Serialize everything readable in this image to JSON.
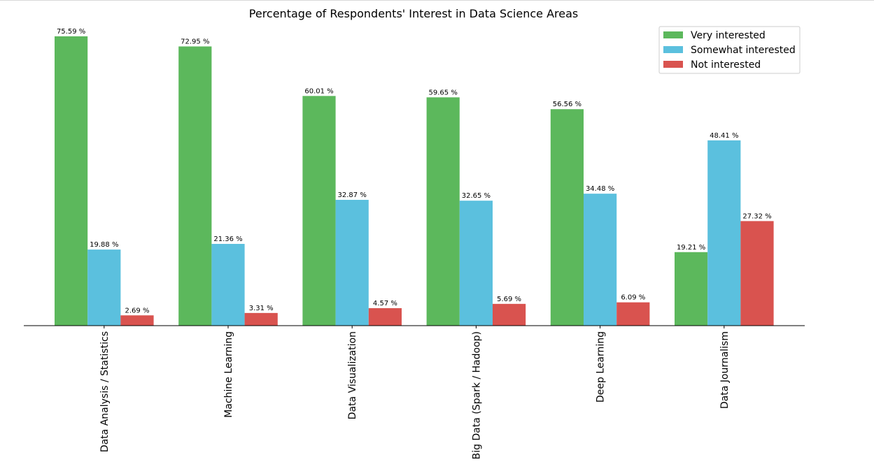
{
  "chart_data": {
    "type": "bar",
    "title": "Percentage of Respondents' Interest in Data Science Areas",
    "xlabel": "",
    "ylabel": "",
    "ylim": [
      0,
      77
    ],
    "grid": false,
    "legend_position": "top-right",
    "value_suffix": " %",
    "categories": [
      "Data Analysis / Statistics",
      "Machine Learning",
      "Data Visualization",
      "Big Data (Spark / Hadoop)",
      "Deep Learning",
      "Data Journalism"
    ],
    "series": [
      {
        "name": "Very interested",
        "color": "#5cb85c",
        "values": [
          75.59,
          72.95,
          60.01,
          59.65,
          56.56,
          19.21
        ]
      },
      {
        "name": "Somewhat interested",
        "color": "#5bc0de",
        "values": [
          19.88,
          21.36,
          32.87,
          32.65,
          34.48,
          48.41
        ]
      },
      {
        "name": "Not interested",
        "color": "#d9534f",
        "values": [
          2.69,
          3.31,
          4.57,
          5.69,
          6.09,
          27.32
        ]
      }
    ]
  }
}
